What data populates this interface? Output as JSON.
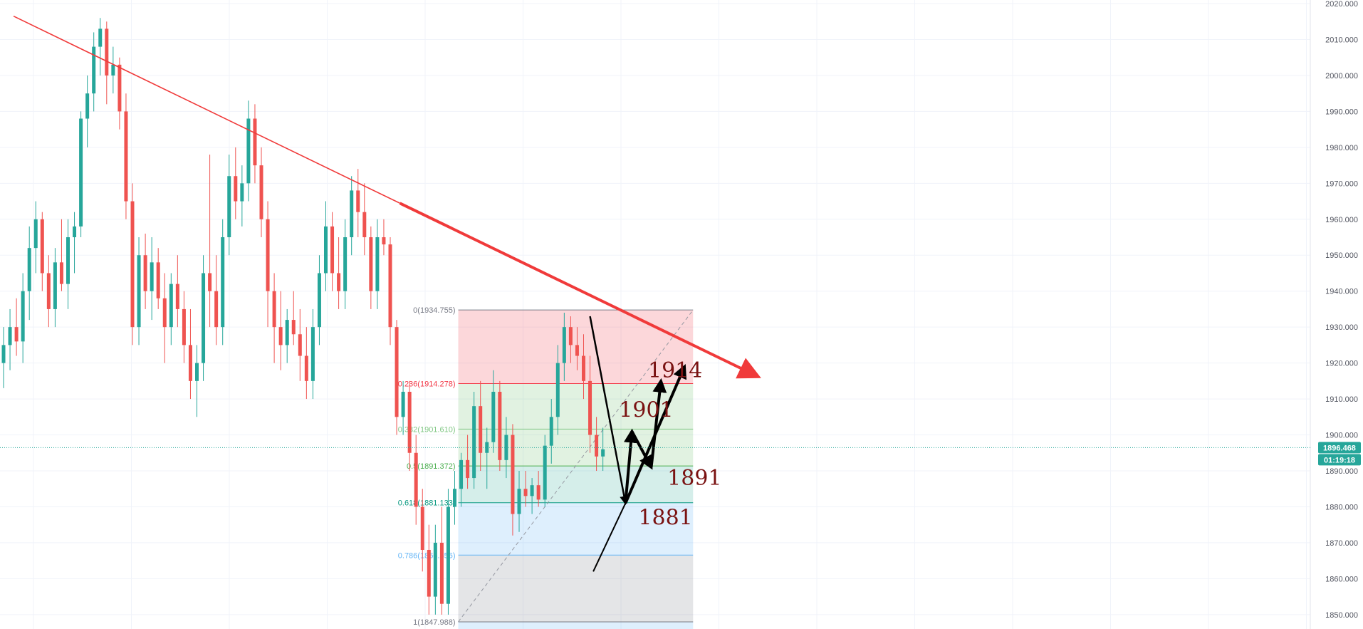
{
  "chart_data": {
    "type": "candlestick",
    "ylim": [
      1846,
      2021
    ],
    "y_axis_ticks": [
      "2020.000",
      "2010.000",
      "2000.000",
      "1990.000",
      "1980.000",
      "1970.000",
      "1960.000",
      "1950.000",
      "1940.000",
      "1930.000",
      "1920.000",
      "1910.000",
      "1900.000",
      "1890.000",
      "1880.000",
      "1870.000",
      "1860.000",
      "1850.000"
    ],
    "y_axis_tick_values": [
      2020,
      2010,
      2000,
      1990,
      1980,
      1970,
      1960,
      1950,
      1940,
      1930,
      1920,
      1910,
      1900,
      1890,
      1880,
      1870,
      1860,
      1850
    ],
    "grid": true,
    "colors": {
      "up": "#26a69a",
      "down": "#ef5350",
      "trendline": "#f03a3a",
      "price_badge": "#26a69a",
      "annotation": "#7a1212",
      "arrows": "#000000"
    },
    "current_price": {
      "value": 1896.468,
      "label": "1896.468"
    },
    "countdown": "01:19:18",
    "candles": [
      {
        "o": 1920,
        "h": 1930,
        "l": 1913,
        "c": 1925
      },
      {
        "o": 1925,
        "h": 1935,
        "l": 1918,
        "c": 1930
      },
      {
        "o": 1930,
        "h": 1938,
        "l": 1922,
        "c": 1926
      },
      {
        "o": 1926,
        "h": 1945,
        "l": 1920,
        "c": 1940
      },
      {
        "o": 1940,
        "h": 1958,
        "l": 1932,
        "c": 1952
      },
      {
        "o": 1952,
        "h": 1965,
        "l": 1945,
        "c": 1960
      },
      {
        "o": 1960,
        "h": 1962,
        "l": 1940,
        "c": 1945
      },
      {
        "o": 1945,
        "h": 1950,
        "l": 1930,
        "c": 1935
      },
      {
        "o": 1935,
        "h": 1952,
        "l": 1930,
        "c": 1948
      },
      {
        "o": 1948,
        "h": 1960,
        "l": 1940,
        "c": 1942
      },
      {
        "o": 1942,
        "h": 1960,
        "l": 1935,
        "c": 1955
      },
      {
        "o": 1955,
        "h": 1962,
        "l": 1945,
        "c": 1958
      },
      {
        "o": 1958,
        "h": 1990,
        "l": 1955,
        "c": 1988
      },
      {
        "o": 1988,
        "h": 2000,
        "l": 1980,
        "c": 1995
      },
      {
        "o": 1995,
        "h": 2012,
        "l": 1990,
        "c": 2008
      },
      {
        "o": 2008,
        "h": 2016,
        "l": 2000,
        "c": 2013
      },
      {
        "o": 2013,
        "h": 2015,
        "l": 1992,
        "c": 2000
      },
      {
        "o": 2000,
        "h": 2008,
        "l": 1995,
        "c": 2003
      },
      {
        "o": 2003,
        "h": 2005,
        "l": 1985,
        "c": 1990
      },
      {
        "o": 1990,
        "h": 1995,
        "l": 1960,
        "c": 1965
      },
      {
        "o": 1965,
        "h": 1970,
        "l": 1925,
        "c": 1930
      },
      {
        "o": 1930,
        "h": 1955,
        "l": 1925,
        "c": 1950
      },
      {
        "o": 1950,
        "h": 1956,
        "l": 1935,
        "c": 1940
      },
      {
        "o": 1940,
        "h": 1955,
        "l": 1932,
        "c": 1948
      },
      {
        "o": 1948,
        "h": 1952,
        "l": 1935,
        "c": 1938
      },
      {
        "o": 1938,
        "h": 1945,
        "l": 1920,
        "c": 1930
      },
      {
        "o": 1930,
        "h": 1945,
        "l": 1925,
        "c": 1942
      },
      {
        "o": 1942,
        "h": 1950,
        "l": 1930,
        "c": 1935
      },
      {
        "o": 1935,
        "h": 1940,
        "l": 1920,
        "c": 1925
      },
      {
        "o": 1925,
        "h": 1935,
        "l": 1910,
        "c": 1915
      },
      {
        "o": 1915,
        "h": 1925,
        "l": 1905,
        "c": 1920
      },
      {
        "o": 1920,
        "h": 1950,
        "l": 1915,
        "c": 1945
      },
      {
        "o": 1945,
        "h": 1978,
        "l": 1930,
        "c": 1940
      },
      {
        "o": 1940,
        "h": 1950,
        "l": 1925,
        "c": 1930
      },
      {
        "o": 1930,
        "h": 1960,
        "l": 1925,
        "c": 1955
      },
      {
        "o": 1955,
        "h": 1978,
        "l": 1950,
        "c": 1972
      },
      {
        "o": 1972,
        "h": 1980,
        "l": 1960,
        "c": 1965
      },
      {
        "o": 1965,
        "h": 1975,
        "l": 1958,
        "c": 1970
      },
      {
        "o": 1970,
        "h": 1993,
        "l": 1965,
        "c": 1988
      },
      {
        "o": 1988,
        "h": 1992,
        "l": 1970,
        "c": 1975
      },
      {
        "o": 1975,
        "h": 1980,
        "l": 1955,
        "c": 1960
      },
      {
        "o": 1960,
        "h": 1965,
        "l": 1930,
        "c": 1940
      },
      {
        "o": 1940,
        "h": 1945,
        "l": 1920,
        "c": 1930
      },
      {
        "o": 1930,
        "h": 1940,
        "l": 1918,
        "c": 1925
      },
      {
        "o": 1925,
        "h": 1935,
        "l": 1920,
        "c": 1932
      },
      {
        "o": 1932,
        "h": 1940,
        "l": 1925,
        "c": 1928
      },
      {
        "o": 1928,
        "h": 1935,
        "l": 1915,
        "c": 1922
      },
      {
        "o": 1922,
        "h": 1930,
        "l": 1910,
        "c": 1915
      },
      {
        "o": 1915,
        "h": 1935,
        "l": 1910,
        "c": 1930
      },
      {
        "o": 1930,
        "h": 1950,
        "l": 1925,
        "c": 1945
      },
      {
        "o": 1945,
        "h": 1965,
        "l": 1940,
        "c": 1958
      },
      {
        "o": 1958,
        "h": 1962,
        "l": 1940,
        "c": 1945
      },
      {
        "o": 1945,
        "h": 1955,
        "l": 1935,
        "c": 1940
      },
      {
        "o": 1940,
        "h": 1960,
        "l": 1935,
        "c": 1955
      },
      {
        "o": 1955,
        "h": 1972,
        "l": 1950,
        "c": 1968
      },
      {
        "o": 1968,
        "h": 1974,
        "l": 1955,
        "c": 1962
      },
      {
        "o": 1962,
        "h": 1970,
        "l": 1950,
        "c": 1955
      },
      {
        "o": 1955,
        "h": 1958,
        "l": 1935,
        "c": 1940
      },
      {
        "o": 1940,
        "h": 1960,
        "l": 1935,
        "c": 1955
      },
      {
        "o": 1955,
        "h": 1960,
        "l": 1950,
        "c": 1953
      },
      {
        "o": 1953,
        "h": 1955,
        "l": 1925,
        "c": 1930
      },
      {
        "o": 1930,
        "h": 1932,
        "l": 1900,
        "c": 1905
      },
      {
        "o": 1905,
        "h": 1915,
        "l": 1900,
        "c": 1912
      },
      {
        "o": 1912,
        "h": 1915,
        "l": 1890,
        "c": 1895
      },
      {
        "o": 1895,
        "h": 1900,
        "l": 1875,
        "c": 1880
      },
      {
        "o": 1880,
        "h": 1885,
        "l": 1862,
        "c": 1868
      },
      {
        "o": 1868,
        "h": 1875,
        "l": 1850,
        "c": 1855
      },
      {
        "o": 1855,
        "h": 1875,
        "l": 1850,
        "c": 1870
      },
      {
        "o": 1870,
        "h": 1880,
        "l": 1850,
        "c": 1853
      },
      {
        "o": 1853,
        "h": 1885,
        "l": 1850,
        "c": 1880
      },
      {
        "o": 1880,
        "h": 1890,
        "l": 1875,
        "c": 1885
      },
      {
        "o": 1885,
        "h": 1895,
        "l": 1880,
        "c": 1893
      },
      {
        "o": 1893,
        "h": 1900,
        "l": 1885,
        "c": 1888
      },
      {
        "o": 1888,
        "h": 1912,
        "l": 1885,
        "c": 1908
      },
      {
        "o": 1908,
        "h": 1915,
        "l": 1890,
        "c": 1895
      },
      {
        "o": 1895,
        "h": 1902,
        "l": 1885,
        "c": 1898
      },
      {
        "o": 1898,
        "h": 1918,
        "l": 1895,
        "c": 1912
      },
      {
        "o": 1912,
        "h": 1915,
        "l": 1890,
        "c": 1893
      },
      {
        "o": 1893,
        "h": 1905,
        "l": 1888,
        "c": 1900
      },
      {
        "o": 1900,
        "h": 1903,
        "l": 1872,
        "c": 1878
      },
      {
        "o": 1878,
        "h": 1890,
        "l": 1873,
        "c": 1885
      },
      {
        "o": 1885,
        "h": 1890,
        "l": 1880,
        "c": 1883
      },
      {
        "o": 1883,
        "h": 1888,
        "l": 1878,
        "c": 1886
      },
      {
        "o": 1886,
        "h": 1890,
        "l": 1880,
        "c": 1882
      },
      {
        "o": 1882,
        "h": 1900,
        "l": 1880,
        "c": 1897
      },
      {
        "o": 1897,
        "h": 1910,
        "l": 1892,
        "c": 1905
      },
      {
        "o": 1905,
        "h": 1925,
        "l": 1900,
        "c": 1920
      },
      {
        "o": 1920,
        "h": 1934,
        "l": 1915,
        "c": 1930
      },
      {
        "o": 1930,
        "h": 1933,
        "l": 1920,
        "c": 1925
      },
      {
        "o": 1925,
        "h": 1930,
        "l": 1918,
        "c": 1922
      },
      {
        "o": 1922,
        "h": 1928,
        "l": 1910,
        "c": 1915
      },
      {
        "o": 1915,
        "h": 1922,
        "l": 1895,
        "c": 1900
      },
      {
        "o": 1900,
        "h": 1905,
        "l": 1890,
        "c": 1894
      },
      {
        "o": 1894,
        "h": 1902,
        "l": 1890,
        "c": 1896
      }
    ],
    "trendline": {
      "from": [
        1,
        2016.5
      ],
      "to": [
        113,
        1916.5
      ],
      "arrow": true
    },
    "fibonacci": {
      "from_index": 70,
      "to_index": 105,
      "levels": [
        {
          "ratio": 0,
          "price": 1934.755,
          "label": "0(1934.755)",
          "color": "#787b86",
          "fill": "rgba(242,54,69,0.20)"
        },
        {
          "ratio": 0.236,
          "price": 1914.278,
          "label": "0.236(1914.278)",
          "color": "#f23645",
          "fill": "rgba(76,175,80,0.17)"
        },
        {
          "ratio": 0.382,
          "price": 1901.61,
          "label": "0.382(1901.610)",
          "color": "#81c784",
          "fill": "rgba(76,175,80,0.17)"
        },
        {
          "ratio": 0.5,
          "price": 1891.372,
          "label": "0.5(1891.372)",
          "color": "#4caf50",
          "fill": "rgba(8,153,129,0.17)"
        },
        {
          "ratio": 0.618,
          "price": 1881.133,
          "label": "0.618(1881.133)",
          "color": "#089981",
          "fill": "rgba(33,150,243,0.15)"
        },
        {
          "ratio": 0.786,
          "price": 1866.556,
          "label": "0.786(1866.556)",
          "color": "#64b5f6",
          "fill": "rgba(120,123,134,0.20)"
        },
        {
          "ratio": 1,
          "price": 1847.988,
          "label": "1(1847.988)",
          "color": "#787b86",
          "fill": "rgba(33,150,243,0.15)"
        }
      ]
    },
    "projection_path": [
      [
        91,
        1933
      ],
      [
        96.5,
        1881
      ],
      [
        97.5,
        1901
      ],
      [
        100.5,
        1891
      ],
      [
        102,
        1915
      ]
    ],
    "support_line": {
      "from": [
        91.5,
        1862
      ],
      "to": [
        104,
        1919
      ]
    },
    "annotations": [
      {
        "text": "1914",
        "x": 100,
        "y": 1916
      },
      {
        "text": "1901",
        "x": 95.5,
        "y": 1905
      },
      {
        "text": "1891",
        "x": 103,
        "y": 1886
      },
      {
        "text": "1881",
        "x": 98.5,
        "y": 1875
      }
    ]
  }
}
